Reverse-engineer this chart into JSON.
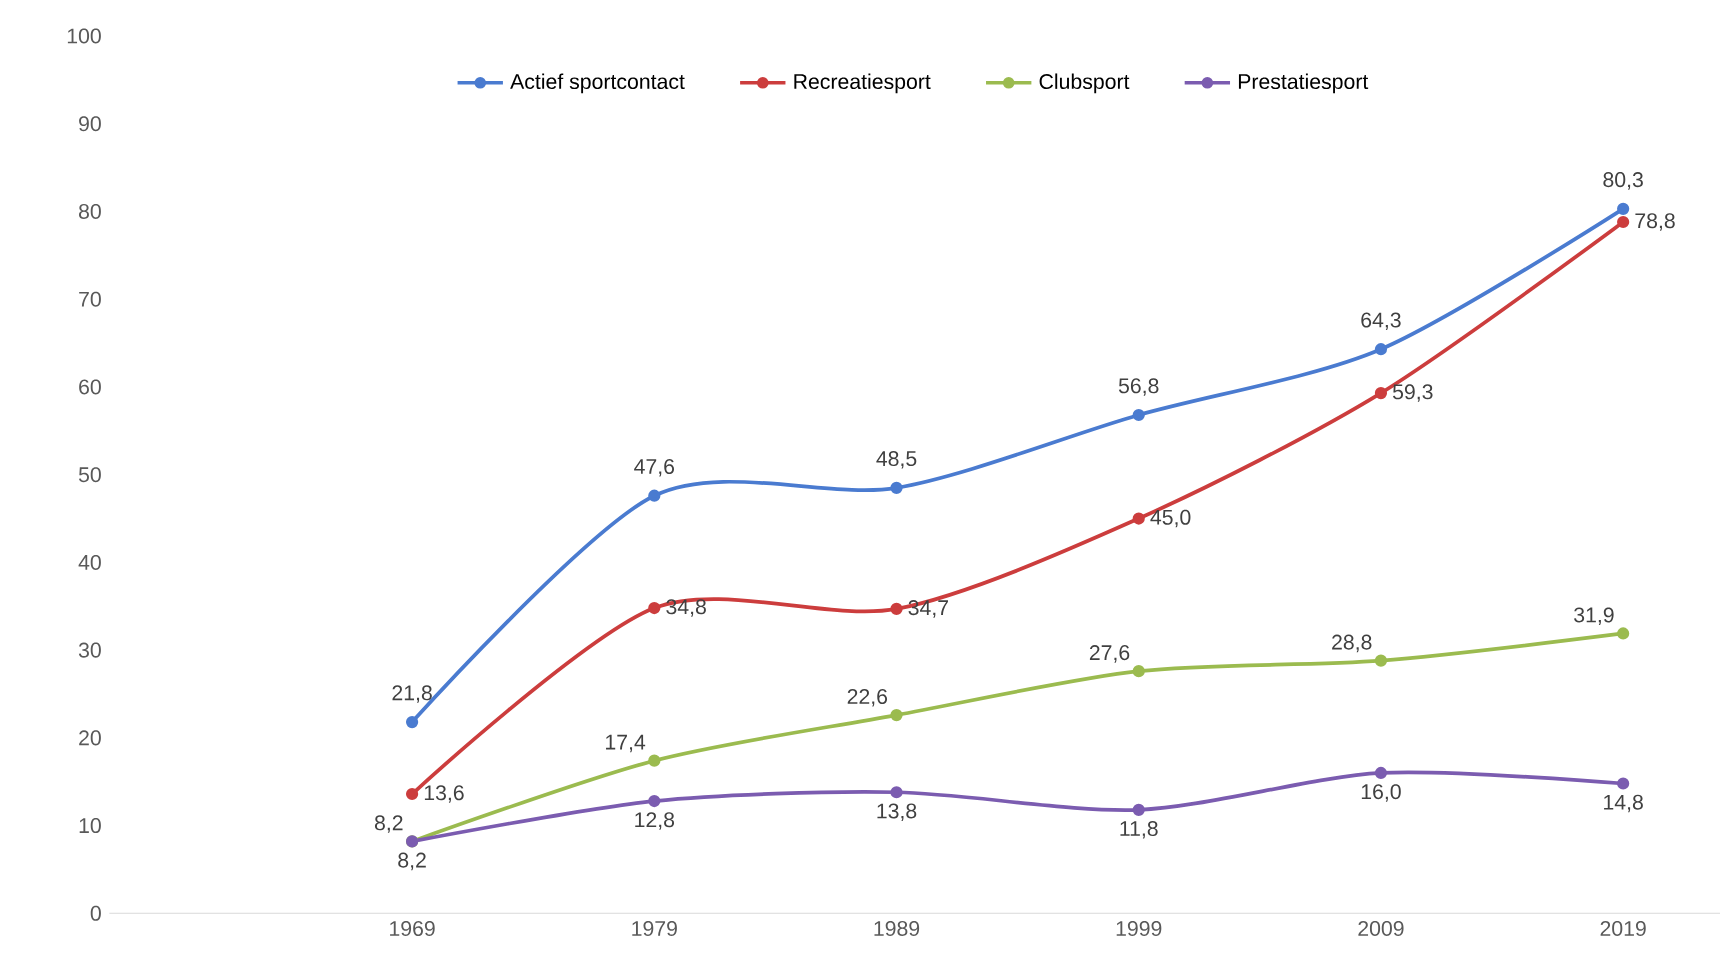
{
  "chart_data": {
    "type": "line",
    "categories": [
      "1969",
      "1979",
      "1989",
      "1999",
      "2009",
      "2019"
    ],
    "series": [
      {
        "name": "Actief sportcontact",
        "color": "#4a7bd0",
        "values": [
          21.8,
          47.6,
          48.5,
          56.8,
          64.3,
          80.3
        ],
        "value_labels": [
          "21,8",
          "47,6",
          "48,5",
          "56,8",
          "64,3",
          "80,3"
        ]
      },
      {
        "name": "Recreatiesport",
        "color": "#cc3d3d",
        "values": [
          13.6,
          34.8,
          34.7,
          45.0,
          59.3,
          78.8
        ],
        "value_labels": [
          "13,6",
          "34,8",
          "34,7",
          "45,0",
          "59,3",
          "78,8"
        ]
      },
      {
        "name": "Clubsport",
        "color": "#9bbb4f",
        "values": [
          8.2,
          17.4,
          22.6,
          27.6,
          28.8,
          31.9
        ],
        "value_labels": [
          "8,2",
          "17,4",
          "22,6",
          "27,6",
          "28,8",
          "31,9"
        ]
      },
      {
        "name": "Prestatiesport",
        "color": "#7b5cb0",
        "values": [
          8.2,
          12.8,
          13.8,
          11.8,
          16.0,
          14.8
        ],
        "value_labels": [
          "8,2",
          "12,8",
          "13,8",
          "11,8",
          "16,0",
          "14,8"
        ]
      }
    ],
    "ylim": [
      0,
      100
    ],
    "yticks": [
      0,
      10,
      20,
      30,
      40,
      50,
      60,
      70,
      80,
      90,
      100
    ],
    "legend": "top",
    "marker": "circle",
    "line_style": "solid"
  }
}
